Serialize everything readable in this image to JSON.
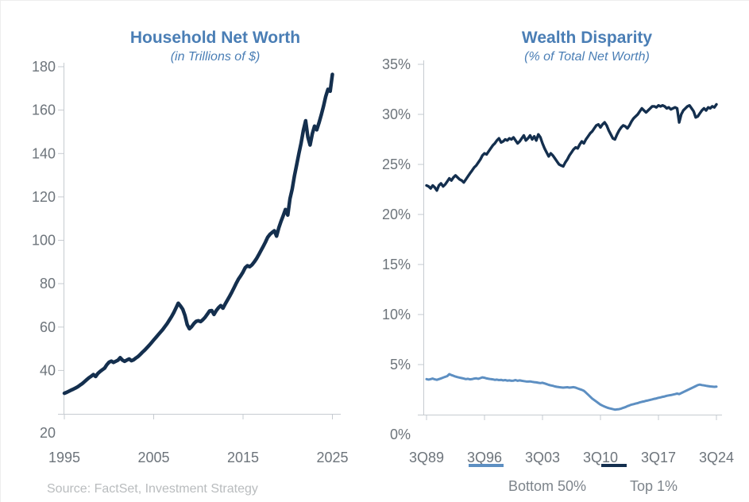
{
  "source": "Source: FactSet, Investment Strategy",
  "colors": {
    "title_blue": "#4a7eb5",
    "axis_label_gray": "#6d747b",
    "axis_line_gray": "#c6cbd0",
    "dark_line": "#142f4e",
    "light_line": "#5d8fc2",
    "source_gray": "#b9bcbe"
  },
  "chart_data": [
    {
      "type": "line",
      "title": "Household Net Worth",
      "subtitle": "(in Trillions of $)",
      "xlabel": "",
      "ylabel": "",
      "ylim": [
        20,
        180
      ],
      "xlim": [
        1995,
        2025
      ],
      "grid": false,
      "y_ticks": [
        "180",
        "160",
        "140",
        "120",
        "100",
        "80",
        "60",
        "40",
        "20"
      ],
      "x_ticks": [
        "1995",
        "2005",
        "2015",
        "2025"
      ],
      "series": [
        {
          "name": "Household Net Worth ($T)",
          "color_key": "dark_line",
          "x_start": 1995.0,
          "x_step": 0.25,
          "values": [
            29.5,
            29.9,
            30.4,
            30.9,
            31.4,
            31.9,
            32.5,
            33.2,
            33.9,
            34.8,
            35.7,
            36.6,
            37.3,
            38.1,
            37.2,
            38.6,
            39.5,
            40.3,
            41.0,
            42.6,
            43.8,
            44.3,
            43.7,
            44.2,
            44.7,
            45.9,
            44.8,
            44.2,
            44.8,
            45.3,
            44.5,
            44.9,
            45.7,
            46.4,
            47.4,
            48.4,
            49.4,
            50.5,
            51.6,
            52.8,
            54.0,
            55.2,
            56.4,
            57.6,
            58.8,
            60.2,
            61.6,
            63.2,
            64.8,
            66.7,
            68.8,
            71.0,
            69.7,
            68.2,
            65.3,
            61.1,
            59.2,
            60.2,
            61.6,
            62.6,
            62.9,
            62.5,
            63.4,
            64.5,
            65.9,
            67.4,
            67.6,
            65.8,
            67.6,
            68.9,
            69.9,
            68.7,
            70.6,
            72.4,
            74.2,
            76.1,
            78.2,
            80.3,
            82.2,
            83.7,
            85.4,
            87.4,
            88.3,
            87.8,
            88.7,
            90.0,
            91.5,
            93.3,
            95.2,
            97.1,
            99.1,
            101.3,
            102.7,
            103.6,
            104.4,
            101.9,
            105.7,
            108.7,
            111.4,
            114.2,
            111.6,
            119.2,
            123.6,
            129.7,
            134.8,
            140.0,
            144.8,
            150.6,
            155.1,
            147.6,
            143.9,
            149.1,
            152.6,
            150.9,
            154.1,
            157.7,
            161.8,
            166.3,
            169.6,
            168.7,
            176.5
          ]
        }
      ]
    },
    {
      "type": "line",
      "title": "Wealth Disparity",
      "subtitle": "(% of Total Net Worth)",
      "xlabel": "",
      "ylabel": "",
      "ylim": [
        0,
        35
      ],
      "grid": false,
      "y_ticks": [
        "35%",
        "30%",
        "25%",
        "20%",
        "15%",
        "10%",
        "5%",
        "0%"
      ],
      "x_ticks": [
        "3Q89",
        "3Q96",
        "3Q03",
        "3Q10",
        "3Q17",
        "3Q24"
      ],
      "legend": [
        {
          "label": "Bottom 50%",
          "color_key": "light_line"
        },
        {
          "label": "Top 1%",
          "color_key": "dark_line"
        }
      ],
      "series": [
        {
          "name": "Bottom 50%",
          "color_key": "light_line",
          "x_start": 1989.75,
          "x_step": 0.25,
          "values": [
            3.55,
            3.5,
            3.55,
            3.6,
            3.52,
            3.48,
            3.55,
            3.62,
            3.7,
            3.78,
            3.85,
            4.05,
            3.95,
            3.88,
            3.8,
            3.75,
            3.7,
            3.65,
            3.6,
            3.55,
            3.58,
            3.52,
            3.55,
            3.6,
            3.63,
            3.58,
            3.65,
            3.72,
            3.68,
            3.62,
            3.58,
            3.55,
            3.52,
            3.48,
            3.5,
            3.45,
            3.48,
            3.42,
            3.45,
            3.4,
            3.42,
            3.38,
            3.4,
            3.45,
            3.38,
            3.42,
            3.38,
            3.35,
            3.32,
            3.3,
            3.32,
            3.28,
            3.25,
            3.22,
            3.18,
            3.15,
            3.18,
            3.12,
            3.05,
            2.98,
            2.92,
            2.88,
            2.82,
            2.78,
            2.75,
            2.72,
            2.7,
            2.72,
            2.74,
            2.7,
            2.72,
            2.75,
            2.7,
            2.62,
            2.55,
            2.48,
            2.38,
            2.2,
            2.0,
            1.8,
            1.6,
            1.45,
            1.3,
            1.15,
            1.0,
            0.9,
            0.8,
            0.72,
            0.65,
            0.6,
            0.55,
            0.5,
            0.52,
            0.55,
            0.6,
            0.68,
            0.75,
            0.85,
            0.92,
            1.0,
            1.05,
            1.1,
            1.15,
            1.22,
            1.28,
            1.32,
            1.38,
            1.42,
            1.48,
            1.52,
            1.58,
            1.62,
            1.68,
            1.72,
            1.78,
            1.82,
            1.88,
            1.92,
            1.95,
            2.0,
            2.05,
            2.1,
            2.05,
            2.15,
            2.25,
            2.35,
            2.45,
            2.55,
            2.65,
            2.75,
            2.85,
            2.95,
            3.0,
            2.95,
            2.92,
            2.88,
            2.85,
            2.82,
            2.8,
            2.78,
            2.8
          ]
        },
        {
          "name": "Top 1%",
          "color_key": "dark_line",
          "x_start": 1989.75,
          "x_step": 0.25,
          "values": [
            22.9,
            22.8,
            22.6,
            22.9,
            22.7,
            22.4,
            22.9,
            23.1,
            22.8,
            23.0,
            23.3,
            23.6,
            23.4,
            23.7,
            23.9,
            23.7,
            23.5,
            23.4,
            23.2,
            23.5,
            23.8,
            24.1,
            24.4,
            24.7,
            24.9,
            25.2,
            25.5,
            25.9,
            26.1,
            26.0,
            26.3,
            26.6,
            26.9,
            27.1,
            27.4,
            27.6,
            27.2,
            27.3,
            27.5,
            27.4,
            27.6,
            27.5,
            27.7,
            27.4,
            27.1,
            27.3,
            27.6,
            27.9,
            27.4,
            27.6,
            27.9,
            27.5,
            27.8,
            27.4,
            28.0,
            27.7,
            27.1,
            26.6,
            26.2,
            25.8,
            26.1,
            25.9,
            25.6,
            25.3,
            25.0,
            24.9,
            24.8,
            25.2,
            25.5,
            25.9,
            26.2,
            26.5,
            26.7,
            26.6,
            27.0,
            27.3,
            27.1,
            27.5,
            27.8,
            28.1,
            28.3,
            28.6,
            28.9,
            29.0,
            28.7,
            29.0,
            29.2,
            28.9,
            28.4,
            28.0,
            27.6,
            27.5,
            28.0,
            28.4,
            28.7,
            28.9,
            28.8,
            28.6,
            28.9,
            29.3,
            29.6,
            29.8,
            30.0,
            30.3,
            30.6,
            30.4,
            30.2,
            30.4,
            30.6,
            30.8,
            30.8,
            30.7,
            30.9,
            30.8,
            30.9,
            30.8,
            30.6,
            30.7,
            30.5,
            30.6,
            30.7,
            30.6,
            29.2,
            30.0,
            30.4,
            30.6,
            30.8,
            30.9,
            30.6,
            30.3,
            29.7,
            29.8,
            30.1,
            30.4,
            30.6,
            30.4,
            30.7,
            30.6,
            30.8,
            30.7,
            31.0
          ]
        }
      ]
    }
  ]
}
